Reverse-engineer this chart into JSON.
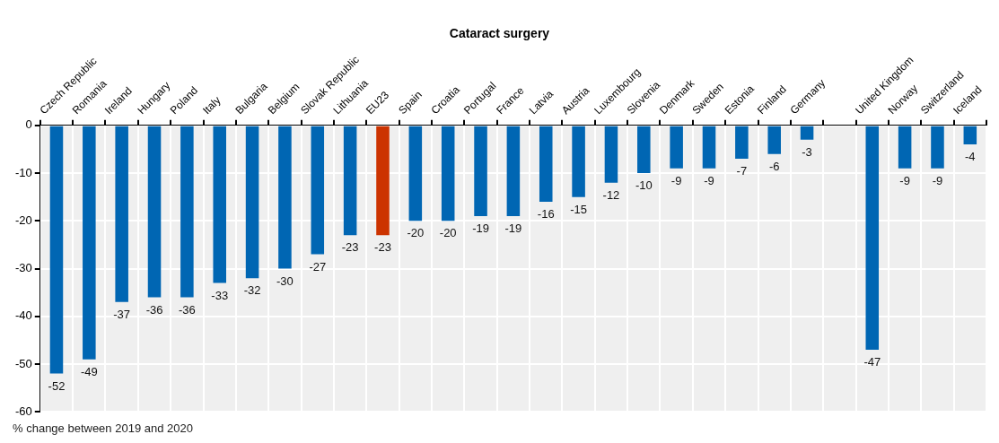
{
  "chart_data": {
    "type": "bar",
    "title": "Cataract surgery",
    "ylabel": "% change between 2019 and 2020",
    "categories": [
      "Czech Republic",
      "Romania",
      "Ireland",
      "Hungary",
      "Poland",
      "Italy",
      "Bulgaria",
      "Belgium",
      "Slovak Republic",
      "Lithuania",
      "EU23",
      "Spain",
      "Croatia",
      "Portugal",
      "France",
      "Latvia",
      "Austria",
      "Luxembourg",
      "Slovenia",
      "Denmark",
      "Sweden",
      "Estonia",
      "Finland",
      "Germany",
      null,
      "United Kingdom",
      "Norway",
      "Switzerland",
      "Iceland"
    ],
    "values": [
      -52,
      -49,
      -37,
      -36,
      -36,
      -33,
      -32,
      -30,
      -27,
      -23,
      -23,
      -20,
      -20,
      -19,
      -19,
      -16,
      -15,
      -12,
      -10,
      -9,
      -9,
      -7,
      -6,
      -3,
      null,
      -47,
      -9,
      -9,
      -4
    ],
    "colors": [
      "#0066b3",
      "#0066b3",
      "#0066b3",
      "#0066b3",
      "#0066b3",
      "#0066b3",
      "#0066b3",
      "#0066b3",
      "#0066b3",
      "#0066b3",
      "#cc3300",
      "#0066b3",
      "#0066b3",
      "#0066b3",
      "#0066b3",
      "#0066b3",
      "#0066b3",
      "#0066b3",
      "#0066b3",
      "#0066b3",
      "#0066b3",
      "#0066b3",
      "#0066b3",
      "#0066b3",
      "#0066b3",
      "#0066b3",
      "#0066b3",
      "#0066b3",
      "#0066b3"
    ],
    "ylim": [
      -60,
      0
    ],
    "yticks": [
      0,
      -10,
      -20,
      -30,
      -40,
      -50,
      -60
    ],
    "grid": true,
    "data_labels": true,
    "legend": false
  }
}
